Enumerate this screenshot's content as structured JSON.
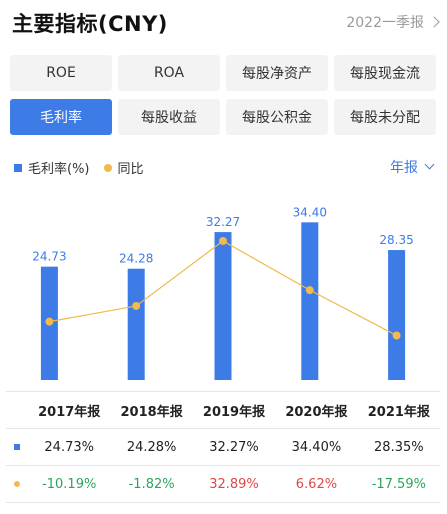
{
  "header": {
    "title": "主要指标(CNY)",
    "period": "2022一季报"
  },
  "tabs": [
    {
      "label": "ROE",
      "active": false
    },
    {
      "label": "ROA",
      "active": false
    },
    {
      "label": "每股净资产",
      "active": false
    },
    {
      "label": "每股现金流",
      "active": false
    },
    {
      "label": "毛利率",
      "active": true
    },
    {
      "label": "每股收益",
      "active": false
    },
    {
      "label": "每股公积金",
      "active": false
    },
    {
      "label": "每股未分配",
      "active": false
    }
  ],
  "legend": {
    "bar_label": "毛利率(%)",
    "line_label": "同比"
  },
  "frequency": "年报",
  "colors": {
    "accent": "#3d7be6",
    "line": "#f2b94b",
    "positive": "#e04848",
    "negative": "#2aa55c"
  },
  "chart_data": {
    "type": "bar",
    "categories": [
      "2017年报",
      "2018年报",
      "2019年报",
      "2020年报",
      "2021年报"
    ],
    "series": [
      {
        "name": "毛利率(%)",
        "type": "bar",
        "values": [
          24.73,
          24.28,
          32.27,
          34.4,
          28.35
        ],
        "labels": [
          "24.73",
          "24.28",
          "32.27",
          "34.40",
          "28.35"
        ]
      },
      {
        "name": "同比",
        "type": "line",
        "values": [
          -10.19,
          -1.82,
          32.89,
          6.62,
          -17.59
        ]
      }
    ],
    "grid": false
  },
  "table": {
    "headers": [
      "2017年报",
      "2018年报",
      "2019年报",
      "2020年报",
      "2021年报"
    ],
    "bar_row": [
      "24.73%",
      "24.28%",
      "32.27%",
      "34.40%",
      "28.35%"
    ],
    "line_row": [
      "-10.19%",
      "-1.82%",
      "32.89%",
      "6.62%",
      "-17.59%"
    ]
  }
}
